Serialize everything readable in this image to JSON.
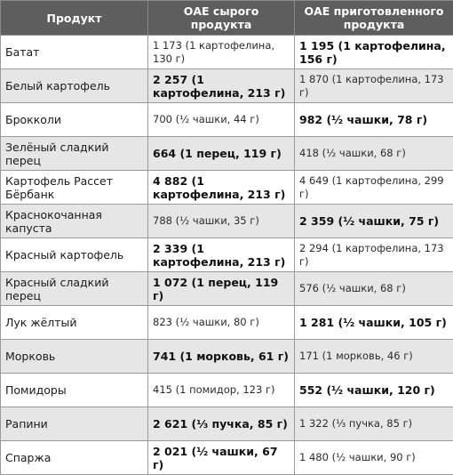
{
  "headers": [
    "Продукт",
    "ОАЕ сырого продукта",
    "ОАЕ приготовленного продукта"
  ],
  "rows": [
    {
      "product": "Батат",
      "raw": "1 173 (1 картофелина, 130 г)",
      "cooked": "1 195 (1 картофелина, 156 г)",
      "bold": "cooked"
    },
    {
      "product": "Белый картофель",
      "raw": "2 257 (1 картофелина, 213 г)",
      "cooked": "1 870 (1 картофелина, 173 г)",
      "bold": "raw"
    },
    {
      "product": "Брокколи",
      "raw": "700 (½ чашки, 44 г)",
      "cooked": "982 (½ чашки, 78 г)",
      "bold": "cooked"
    },
    {
      "product": "Зелёный сладкий перец",
      "raw": "664 (1 перец, 119 г)",
      "cooked": "418 (½ чашки, 68 г)",
      "bold": "raw"
    },
    {
      "product": "Картофель Рассет Бёрбанк",
      "raw": "4 882 (1 картофелина, 213 г)",
      "cooked": "4 649 (1 картофелина, 299 г)",
      "bold": "raw"
    },
    {
      "product": "Краснокочанная капуста",
      "raw": "788 (½ чашки, 35 г)",
      "cooked": "2 359 (½ чашки, 75 г)",
      "bold": "cooked"
    },
    {
      "product": "Красный картофель",
      "raw": "2 339 (1 картофелина, 213 г)",
      "cooked": "2 294 (1 картофелина, 173 г)",
      "bold": "raw"
    },
    {
      "product": "Красный сладкий перец",
      "raw": "1 072 (1 перец, 119 г)",
      "cooked": "576 (½ чашки, 68 г)",
      "bold": "raw"
    },
    {
      "product": "Лук жёлтый",
      "raw": "823 (½ чашки, 80 г)",
      "cooked": "1 281 (½ чашки, 105 г)",
      "bold": "cooked"
    },
    {
      "product": "Морковь",
      "raw": "741 (1 морковь, 61 г)",
      "cooked": "171 (1 морковь, 46 г)",
      "bold": "raw"
    },
    {
      "product": "Помидоры",
      "raw": "415 (1 помидор, 123 г)",
      "cooked": "552 (½ чашки, 120 г)",
      "bold": "cooked"
    },
    {
      "product": "Рапини",
      "raw": "2 621 (⅓ пучка, 85 г)",
      "cooked": "1 322 (⅓ пучка, 85 г)",
      "bold": "raw"
    },
    {
      "product": "Спаржа",
      "raw": "2 021 (½ чашки, 67 г)",
      "cooked": "1 480 (½ чашки, 90 г)",
      "bold": "raw"
    }
  ]
}
